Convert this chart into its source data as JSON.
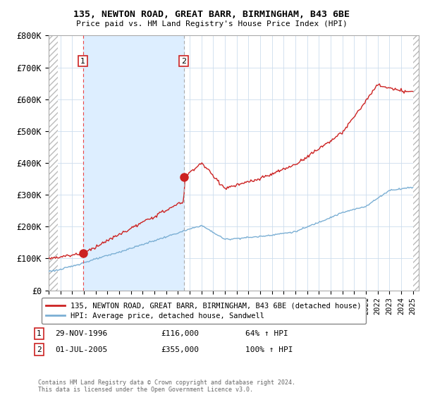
{
  "title_line1": "135, NEWTON ROAD, GREAT BARR, BIRMINGHAM, B43 6BE",
  "title_line2": "Price paid vs. HM Land Registry's House Price Index (HPI)",
  "xmin": 1994.0,
  "xmax": 2025.5,
  "ymin": 0,
  "ymax": 800000,
  "yticks": [
    0,
    100000,
    200000,
    300000,
    400000,
    500000,
    600000,
    700000,
    800000
  ],
  "ytick_labels": [
    "£0",
    "£100K",
    "£200K",
    "£300K",
    "£400K",
    "£500K",
    "£600K",
    "£700K",
    "£800K"
  ],
  "xtick_years": [
    1994,
    1995,
    1996,
    1997,
    1998,
    1999,
    2000,
    2001,
    2002,
    2003,
    2004,
    2005,
    2006,
    2007,
    2008,
    2009,
    2010,
    2011,
    2012,
    2013,
    2014,
    2015,
    2016,
    2017,
    2018,
    2019,
    2020,
    2021,
    2022,
    2023,
    2024,
    2025
  ],
  "hpi_line_color": "#7bafd4",
  "price_line_color": "#cc2222",
  "marker_color": "#cc2222",
  "shade_color": "#ddeeff",
  "marker1_x": 1996.91,
  "marker1_y": 116000,
  "marker2_x": 2005.5,
  "marker2_y": 355000,
  "vline1_x": 1996.91,
  "vline2_x": 2005.5,
  "legend_label1": "135, NEWTON ROAD, GREAT BARR, BIRMINGHAM, B43 6BE (detached house)",
  "legend_label2": "HPI: Average price, detached house, Sandwell",
  "table_row1": [
    "1",
    "29-NOV-1996",
    "£116,000",
    "64% ↑ HPI"
  ],
  "table_row2": [
    "2",
    "01-JUL-2005",
    "£355,000",
    "100% ↑ HPI"
  ],
  "footnote": "Contains HM Land Registry data © Crown copyright and database right 2024.\nThis data is licensed under the Open Government Licence v3.0."
}
